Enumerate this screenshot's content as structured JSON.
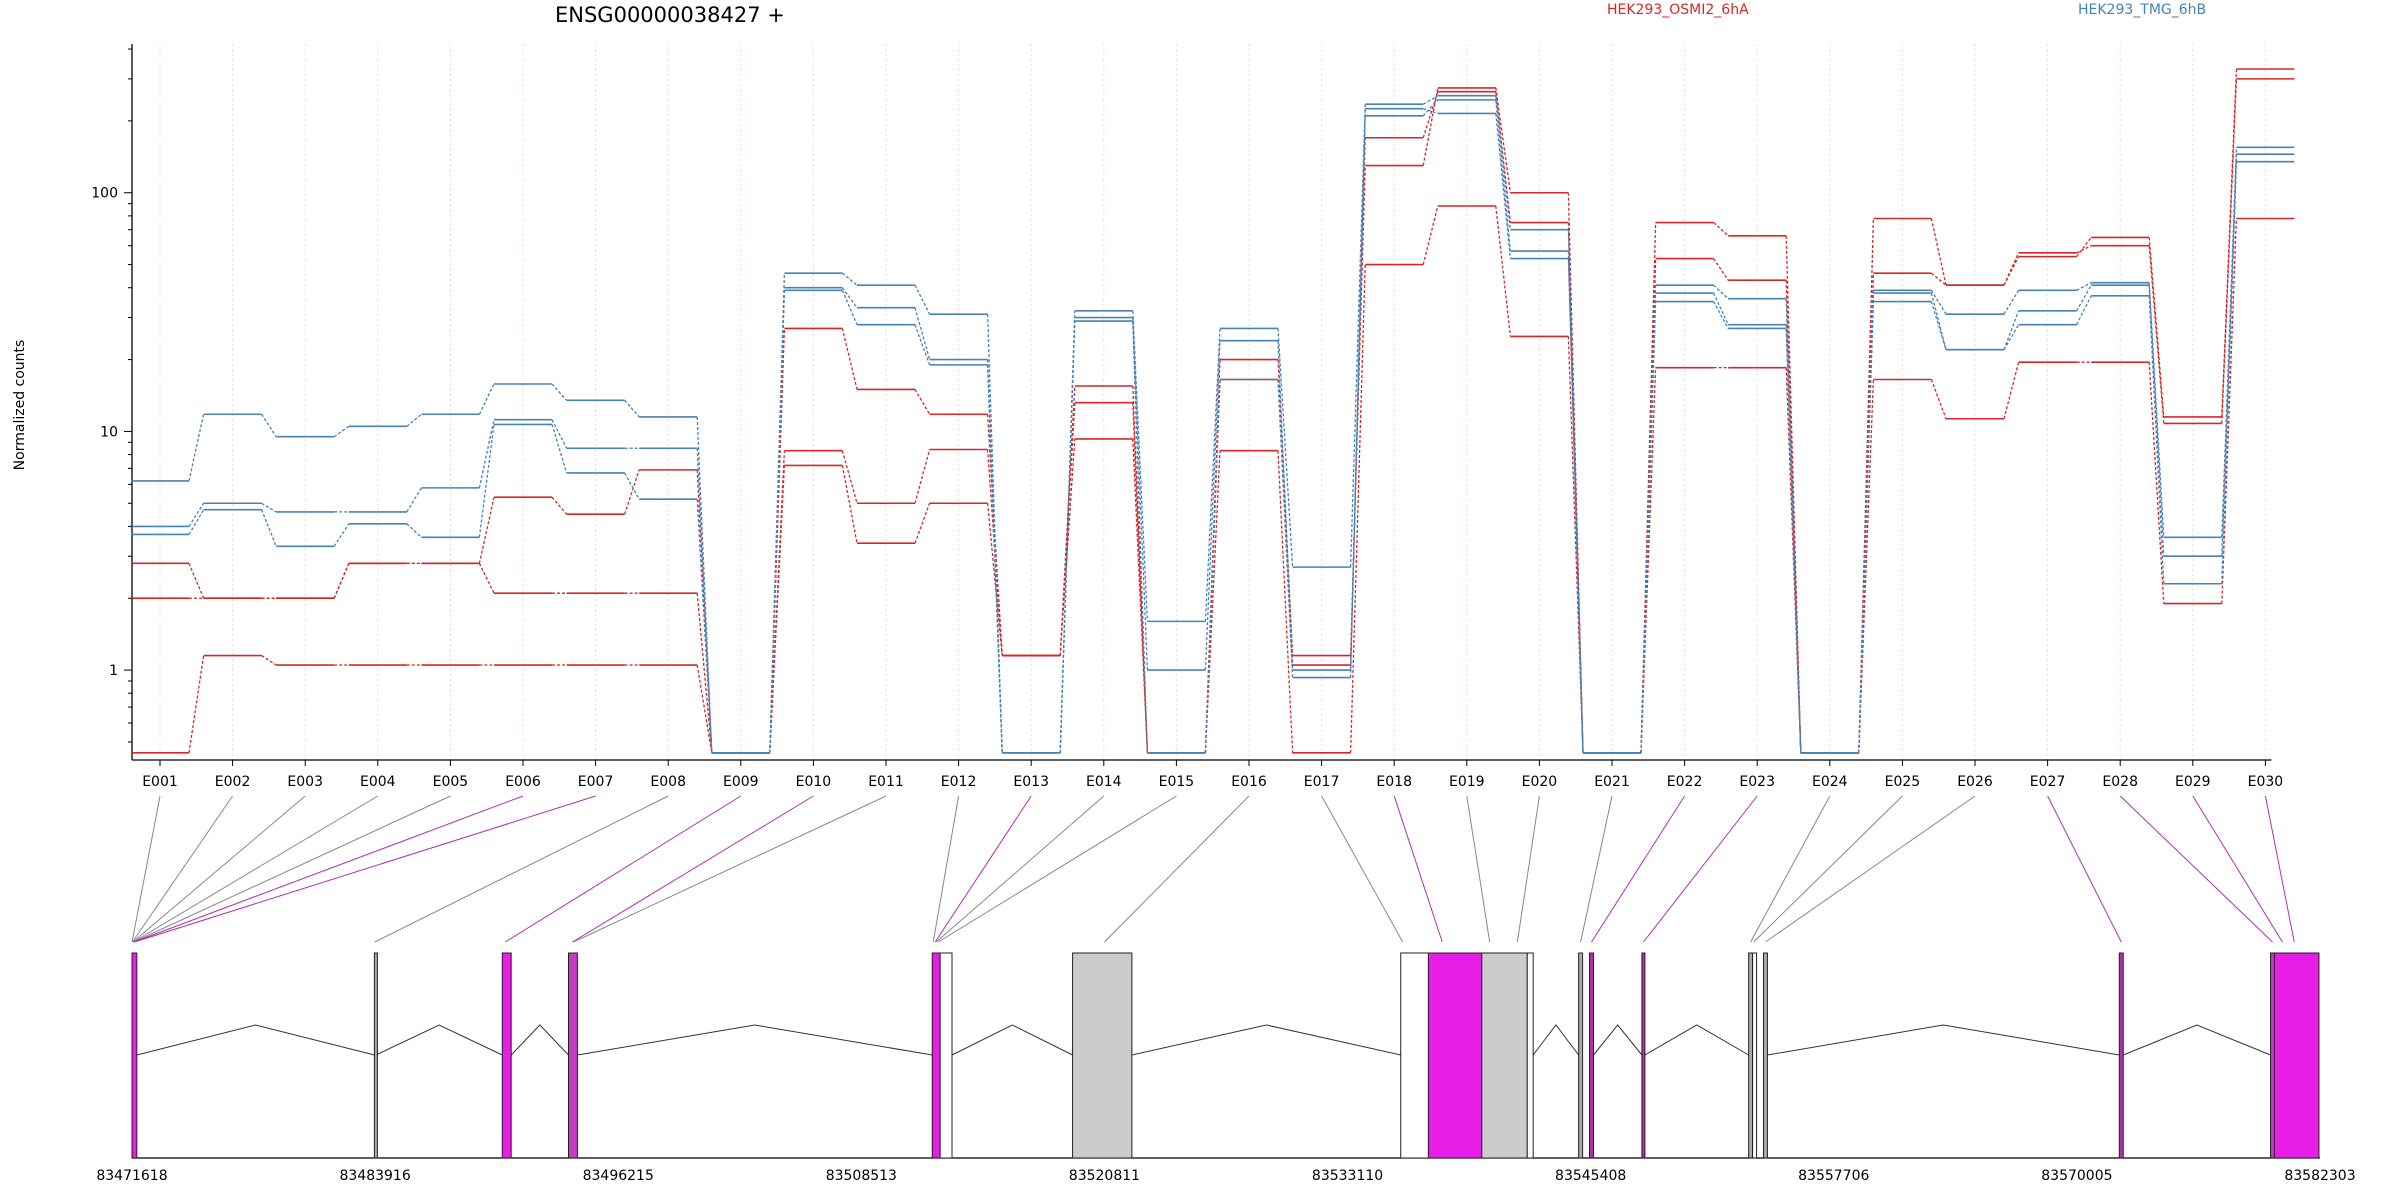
{
  "chart_data": {
    "type": "line",
    "title": "ENSG00000038427 +",
    "ylabel": "Normalized counts",
    "xlabel": "",
    "yscale": "log",
    "ylim": [
      0.42,
      420
    ],
    "yticks": [
      1,
      10,
      100
    ],
    "ytick_labels": [
      "1",
      "10",
      "100"
    ],
    "grid": "vertical dotted at each exon",
    "legend": "top",
    "categories": [
      "E001",
      "E002",
      "E003",
      "E004",
      "E005",
      "E006",
      "E007",
      "E008",
      "E009",
      "E010",
      "E011",
      "E012",
      "E013",
      "E014",
      "E015",
      "E016",
      "E017",
      "E018",
      "E019",
      "E020",
      "E021",
      "E022",
      "E023",
      "E024",
      "E025",
      "E026",
      "E027",
      "E028",
      "E029",
      "E030"
    ],
    "series": [
      {
        "name": "HEK293_OSMI2_6hA",
        "color": "#d62728",
        "values": [
          2.8,
          2.0,
          2.0,
          2.8,
          2.8,
          5.3,
          4.5,
          6.9,
          0.45,
          8.3,
          5.0,
          8.4,
          1.15,
          15.5,
          0.45,
          20.0,
          1.15,
          130,
          275,
          100,
          0.45,
          75,
          66,
          0.45,
          78,
          41,
          54,
          65,
          11.5,
          330
        ]
      },
      {
        "name": "",
        "color": "#d62728",
        "values": [
          2.0,
          2.0,
          2.0,
          2.8,
          2.8,
          2.1,
          2.1,
          2.1,
          0.45,
          7.2,
          3.4,
          5.0,
          1.15,
          13.2,
          0.45,
          16.5,
          1.05,
          170,
          265,
          75,
          0.45,
          53,
          43,
          0.45,
          46,
          41,
          56,
          60,
          10.8,
          300
        ]
      },
      {
        "name": "",
        "color": "#d62728",
        "values": [
          0.45,
          1.15,
          1.05,
          1.05,
          1.05,
          1.05,
          1.05,
          1.05,
          0.45,
          27,
          15,
          11.8,
          1.15,
          9.3,
          0.45,
          8.3,
          0.45,
          50,
          88,
          25,
          0.45,
          18.5,
          18.5,
          0.45,
          16.5,
          11.3,
          19.5,
          19.5,
          1.9,
          78
        ]
      },
      {
        "name": "HEK293_TMG_6hB",
        "color": "#4682b4",
        "values": [
          6.2,
          11.8,
          9.5,
          10.5,
          11.8,
          15.8,
          13.5,
          11.5,
          0.45,
          46,
          41,
          31,
          0.45,
          32,
          1.6,
          27,
          2.7,
          235,
          255,
          70,
          0.45,
          41,
          36,
          0.45,
          39,
          31,
          39,
          42,
          3.6,
          155
        ]
      },
      {
        "name": "",
        "color": "#4682b4",
        "values": [
          4.0,
          5.0,
          4.6,
          4.6,
          5.8,
          11.2,
          8.5,
          8.5,
          0.45,
          40,
          33,
          20,
          0.45,
          30,
          1.0,
          24,
          1.0,
          210,
          245,
          57,
          0.45,
          38,
          28,
          0.45,
          38,
          22,
          32,
          41,
          3.0,
          145
        ]
      },
      {
        "name": "",
        "color": "#4682b4",
        "values": [
          3.7,
          4.7,
          3.3,
          4.1,
          3.6,
          10.7,
          6.7,
          5.2,
          0.45,
          39,
          28,
          19,
          0.45,
          29,
          0.45,
          16.5,
          0.93,
          225,
          215,
          53,
          0.45,
          35,
          27,
          0.45,
          35,
          22,
          28,
          37,
          2.3,
          135
        ]
      }
    ],
    "gene_model": {
      "coordinate_labels": [
        "83471618",
        "83483916",
        "83496215",
        "83508513",
        "83520811",
        "83533110",
        "83545408",
        "83557706",
        "83570005",
        "83582303"
      ],
      "genomic_range": [
        83471618,
        83582303
      ],
      "exons": [
        {
          "start": 83471618,
          "end": 83471860,
          "fill": "#e91ee6"
        },
        {
          "start": 83483880,
          "end": 83483960,
          "fill": "#aaaaaa"
        },
        {
          "start": 83490350,
          "end": 83490800,
          "fill": "#e91ee6"
        },
        {
          "start": 83493700,
          "end": 83494150,
          "fill": "#c040c0"
        },
        {
          "start": 83512100,
          "end": 83512500,
          "fill": "#e91ee6"
        },
        {
          "start": 83512500,
          "end": 83513100,
          "fill": "#ffffff"
        },
        {
          "start": 83519200,
          "end": 83522200,
          "fill": "#cccccc"
        },
        {
          "start": 83535800,
          "end": 83537200,
          "fill": "#ffffff"
        },
        {
          "start": 83537200,
          "end": 83539900,
          "fill": "#e91ee6"
        },
        {
          "start": 83539900,
          "end": 83542200,
          "fill": "#cccccc"
        },
        {
          "start": 83542200,
          "end": 83542500,
          "fill": "#ffffff"
        },
        {
          "start": 83544800,
          "end": 83545000,
          "fill": "#aaaaaa"
        },
        {
          "start": 83545350,
          "end": 83545550,
          "fill": "#b030b0"
        },
        {
          "start": 83548000,
          "end": 83548150,
          "fill": "#b030b0"
        },
        {
          "start": 83553400,
          "end": 83553600,
          "fill": "#aaaaaa"
        },
        {
          "start": 83553600,
          "end": 83553800,
          "fill": "#ffffff"
        },
        {
          "start": 83554150,
          "end": 83554350,
          "fill": "#aaaaaa"
        },
        {
          "start": 83572150,
          "end": 83572350,
          "fill": "#b030b0"
        },
        {
          "start": 83579800,
          "end": 83580000,
          "fill": "#e91ee6"
        },
        {
          "start": 83580000,
          "end": 83582250,
          "fill": "#e91ee6"
        }
      ],
      "connector_targets": [
        83471620,
        83471640,
        83471660,
        83471680,
        83471700,
        83471720,
        83471740,
        83483900,
        83490500,
        83493900,
        83493950,
        83512150,
        83512250,
        83512300,
        83512400,
        83520811,
        83535900,
        83537900,
        83540300,
        83541700,
        83544900,
        83545450,
        83548080,
        83553500,
        83553650,
        83554250,
        83572250,
        83579900,
        83580400,
        83581000
      ],
      "connector_colors": [
        "#888888",
        "#888888",
        "#888888",
        "#888888",
        "#888888",
        "#b030b0",
        "#b030b0",
        "#888888",
        "#b030b0",
        "#b030b0",
        "#888888",
        "#888888",
        "#b030b0",
        "#888888",
        "#888888",
        "#888888",
        "#888888",
        "#b030b0",
        "#888888",
        "#888888",
        "#888888",
        "#b030b0",
        "#b030b0",
        "#888888",
        "#888888",
        "#888888",
        "#b030b0",
        "#b030b0",
        "#b030b0",
        "#b030b0"
      ]
    }
  }
}
